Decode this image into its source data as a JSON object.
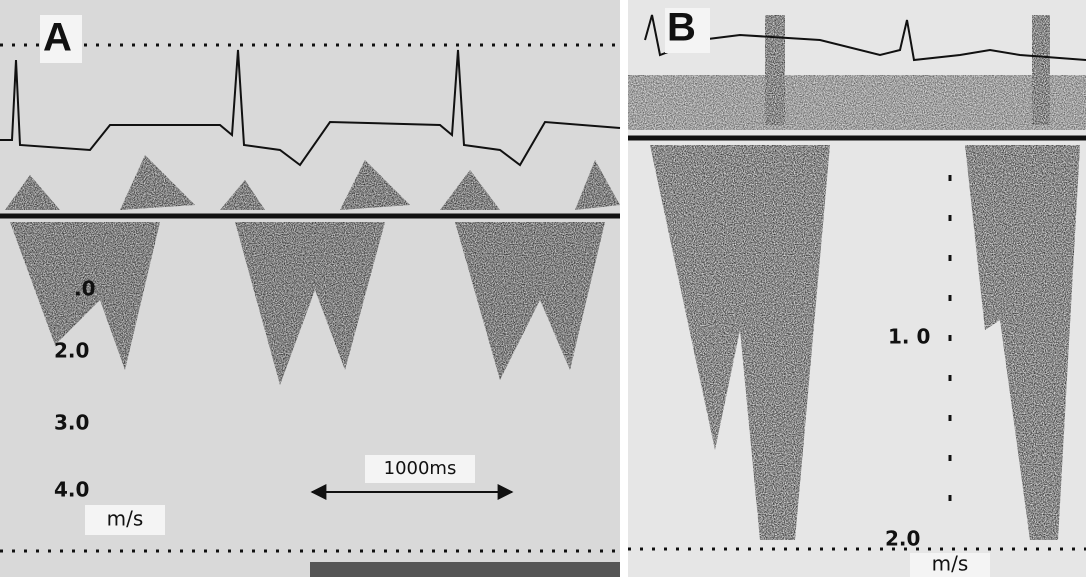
{
  "panels": [
    {
      "label": "A",
      "scale_labels": [
        ".0",
        "2.0",
        "3.0",
        "4.0"
      ],
      "interval_label": "1000ms",
      "unit": "m/s"
    },
    {
      "label": "B",
      "scale_labels": [
        "1. 0",
        "2.0"
      ],
      "unit": "m/s"
    }
  ]
}
